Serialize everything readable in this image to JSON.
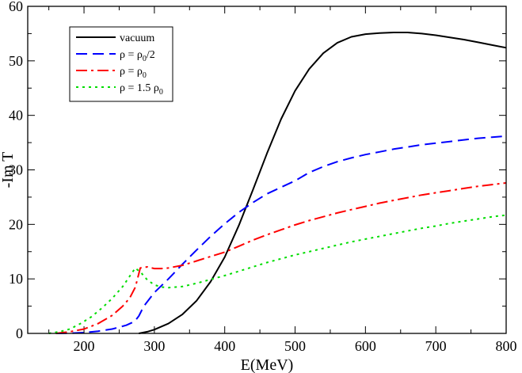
{
  "chart_data": {
    "type": "line",
    "title": "",
    "xlabel": "E(MeV)",
    "ylabel": "-Im T",
    "xlim": [
      120,
      800
    ],
    "ylim": [
      0,
      60
    ],
    "xticks": [
      200,
      300,
      400,
      500,
      600,
      700,
      800
    ],
    "yticks": [
      0,
      10,
      20,
      30,
      40,
      50,
      60
    ],
    "legend_position": "top-left",
    "series": [
      {
        "name": "vacuum",
        "legend": {
          "base": "vacuum",
          "sub": "",
          "suffix": ""
        },
        "color": "#000000",
        "dash": "",
        "x": [
          278,
          290,
          300,
          320,
          340,
          360,
          380,
          400,
          420,
          440,
          460,
          480,
          500,
          520,
          540,
          560,
          580,
          600,
          620,
          640,
          660,
          680,
          700,
          720,
          740,
          760,
          780,
          800
        ],
        "y": [
          0.0,
          0.3,
          0.7,
          1.8,
          3.5,
          6.0,
          9.5,
          14.0,
          19.8,
          26.3,
          33.0,
          39.3,
          44.5,
          48.5,
          51.4,
          53.3,
          54.4,
          54.9,
          55.1,
          55.2,
          55.2,
          55.0,
          54.7,
          54.3,
          53.9,
          53.4,
          52.9,
          52.4
        ]
      },
      {
        "name": "ρ = ρ0/2",
        "legend": {
          "base": "ρ = ρ",
          "sub": "0",
          "suffix": "/2"
        },
        "color": "#0000ff",
        "dash": "14,7",
        "x": [
          160,
          180,
          200,
          220,
          240,
          260,
          272,
          278,
          285,
          300,
          320,
          340,
          360,
          380,
          400,
          420,
          440,
          460,
          480,
          500,
          520,
          540,
          560,
          580,
          600,
          620,
          640,
          660,
          680,
          700,
          720,
          740,
          760,
          780,
          800
        ],
        "y": [
          0.0,
          0.05,
          0.15,
          0.4,
          0.8,
          1.5,
          2.2,
          3.2,
          5.0,
          7.5,
          10.0,
          12.7,
          15.3,
          17.8,
          20.1,
          22.2,
          24.0,
          25.6,
          26.8,
          28.0,
          29.5,
          30.6,
          31.5,
          32.2,
          32.8,
          33.3,
          33.8,
          34.2,
          34.6,
          34.9,
          35.2,
          35.5,
          35.8,
          36.0,
          36.2
        ]
      },
      {
        "name": "ρ = ρ0",
        "legend": {
          "base": "ρ = ρ",
          "sub": "0",
          "suffix": ""
        },
        "color": "#ff0000",
        "dash": "14,5,3,5",
        "x": [
          160,
          180,
          200,
          220,
          240,
          255,
          265,
          273,
          280,
          290,
          300,
          310,
          320,
          340,
          360,
          380,
          400,
          420,
          440,
          460,
          480,
          500,
          520,
          540,
          560,
          580,
          600,
          620,
          640,
          660,
          680,
          700,
          720,
          740,
          760,
          780,
          800
        ],
        "y": [
          0.0,
          0.3,
          0.8,
          1.8,
          3.3,
          5.0,
          6.5,
          8.5,
          12.0,
          12.2,
          11.9,
          11.9,
          12.0,
          12.5,
          13.3,
          14.1,
          14.9,
          16.0,
          17.1,
          18.1,
          19.0,
          19.9,
          20.7,
          21.4,
          22.1,
          22.7,
          23.3,
          23.9,
          24.4,
          24.9,
          25.4,
          25.8,
          26.2,
          26.6,
          27.0,
          27.3,
          27.6
        ]
      },
      {
        "name": "ρ = 1.5 ρ0",
        "legend": {
          "base": "ρ = 1.5 ρ",
          "sub": "0",
          "suffix": ""
        },
        "color": "#00dd00",
        "dash": "3,5",
        "x": [
          150,
          165,
          180,
          195,
          210,
          225,
          240,
          255,
          265,
          273,
          282,
          290,
          300,
          310,
          320,
          340,
          360,
          380,
          400,
          420,
          440,
          460,
          480,
          500,
          520,
          540,
          560,
          580,
          600,
          620,
          640,
          660,
          680,
          700,
          720,
          740,
          760,
          780,
          800
        ],
        "y": [
          0.0,
          0.3,
          0.8,
          1.8,
          3.0,
          4.6,
          6.4,
          8.6,
          10.5,
          12.0,
          11.0,
          9.8,
          8.9,
          8.5,
          8.4,
          8.6,
          9.2,
          9.9,
          10.6,
          11.4,
          12.2,
          13.0,
          13.7,
          14.4,
          15.0,
          15.6,
          16.2,
          16.8,
          17.3,
          17.8,
          18.3,
          18.8,
          19.3,
          19.7,
          20.2,
          20.6,
          21.0,
          21.4,
          21.7
        ]
      }
    ]
  }
}
